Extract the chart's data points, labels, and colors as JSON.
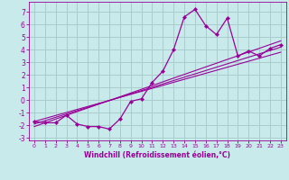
{
  "xlabel": "Windchill (Refroidissement éolien,°C)",
  "bg_color": "#c8eaea",
  "line_color": "#990099",
  "grid_color": "#aacccc",
  "xlim": [
    -0.5,
    23.5
  ],
  "ylim": [
    -3.2,
    7.8
  ],
  "xticks": [
    0,
    1,
    2,
    3,
    4,
    5,
    6,
    7,
    8,
    9,
    10,
    11,
    12,
    13,
    14,
    15,
    16,
    17,
    18,
    19,
    20,
    21,
    22,
    23
  ],
  "yticks": [
    -3,
    -2,
    -1,
    0,
    1,
    2,
    3,
    4,
    5,
    6,
    7
  ],
  "data_x": [
    0,
    1,
    2,
    3,
    4,
    5,
    6,
    7,
    8,
    9,
    10,
    11,
    12,
    13,
    14,
    15,
    16,
    17,
    18,
    19,
    20,
    21,
    22,
    23
  ],
  "data_y": [
    -1.7,
    -1.8,
    -1.8,
    -1.2,
    -1.9,
    -2.1,
    -2.1,
    -2.3,
    -1.5,
    -0.1,
    0.1,
    1.4,
    2.3,
    4.0,
    6.6,
    7.2,
    5.9,
    5.2,
    6.5,
    3.5,
    3.9,
    3.5,
    4.1,
    4.4
  ],
  "line1_x": [
    0,
    23
  ],
  "line1_y": [
    -2.1,
    4.7
  ],
  "line2_x": [
    0,
    23
  ],
  "line2_y": [
    -1.9,
    4.2
  ],
  "line3_x": [
    0,
    23
  ],
  "line3_y": [
    -1.7,
    3.8
  ],
  "xlabel_fontsize": 5.5,
  "tick_fontsize_x": 4.5,
  "tick_fontsize_y": 5.5
}
